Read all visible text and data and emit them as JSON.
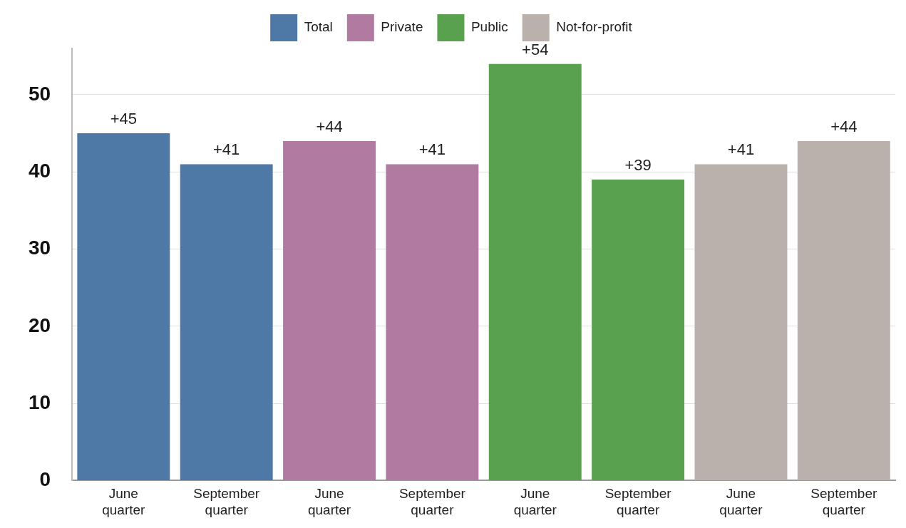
{
  "chart_data": {
    "type": "bar",
    "categories": [
      "June quarter",
      "September quarter",
      "June quarter",
      "September quarter",
      "June quarter",
      "September quarter",
      "June quarter",
      "September quarter"
    ],
    "series": [
      {
        "name": "Total",
        "color": "#4e79a7",
        "values": [
          45,
          41,
          null,
          null,
          null,
          null,
          null,
          null
        ]
      },
      {
        "name": "Private",
        "color": "#b07aa1",
        "values": [
          null,
          null,
          44,
          41,
          null,
          null,
          null,
          null
        ]
      },
      {
        "name": "Public",
        "color": "#59a14f",
        "values": [
          null,
          null,
          null,
          null,
          54,
          39,
          null,
          null
        ]
      },
      {
        "name": "Not-for-profit",
        "color": "#bab0ac",
        "values": [
          null,
          null,
          null,
          null,
          null,
          null,
          41,
          44
        ]
      }
    ],
    "value_labels": [
      "+45",
      "+41",
      "+44",
      "+41",
      "+54",
      "+39",
      "+41",
      "+44"
    ],
    "ylim": [
      0,
      56
    ],
    "yticks": [
      0,
      10,
      20,
      30,
      40,
      50
    ],
    "grid": "y",
    "legend": "top"
  }
}
